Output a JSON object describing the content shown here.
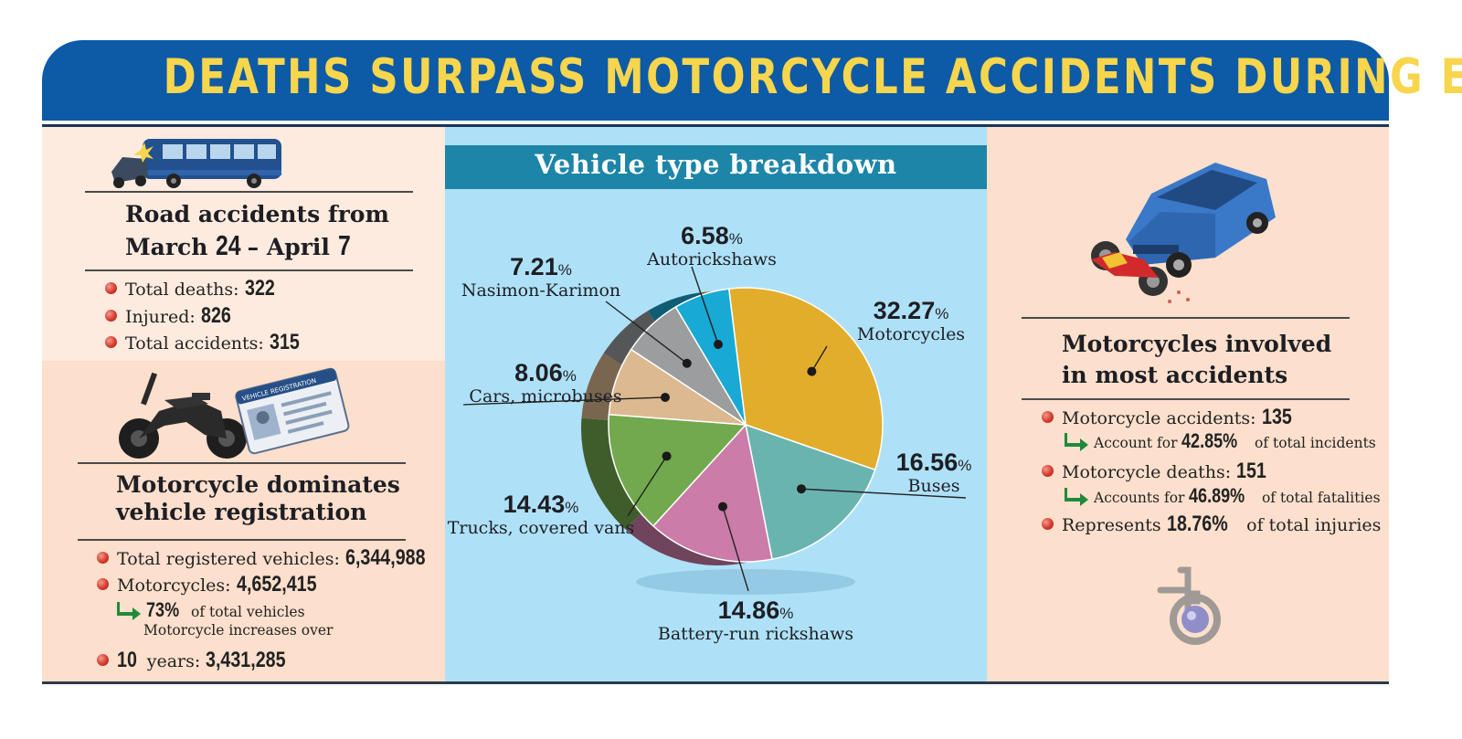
{
  "title": "DEATHS SURPASS MOTORCYCLE ACCIDENTS DURING EID",
  "left_top": {
    "heading_line1": "Road accidents from",
    "heading_march": "March",
    "heading_d1": "24",
    "heading_dash": "– April",
    "heading_d2": "7",
    "items": [
      {
        "label": "Total deaths:",
        "value": "322"
      },
      {
        "label": "Injured:",
        "value": "826"
      },
      {
        "label": "Total accidents:",
        "value": "315"
      }
    ]
  },
  "left_bottom": {
    "heading_line1": "Motorcycle dominates",
    "heading_line2": "vehicle registration",
    "items": [
      {
        "label": "Total registered vehicles:",
        "value": "6,344,988"
      },
      {
        "label": "Motorcycles:",
        "value": "4,652,415"
      }
    ],
    "share_value": "73%",
    "share_text": "of total vehicles",
    "increase_text": "Motorcycle increases over",
    "years_value": "10",
    "years_label": "years:",
    "years_count": "3,431,285",
    "card_title": "VEHICLE REGISTRATION"
  },
  "right": {
    "heading_line1": "Motorcycles involved",
    "heading_line2": "in most accidents",
    "items": [
      {
        "label": "Motorcycle accidents:",
        "value": "135",
        "sub_prefix": "Account for",
        "sub_value": "42.85%",
        "sub_suffix": "of total incidents"
      },
      {
        "label": "Motorcycle deaths:",
        "value": "151",
        "sub_prefix": "Accounts for",
        "sub_value": "46.89%",
        "sub_suffix": "of total fatalities"
      }
    ],
    "injuries_prefix": "Represents",
    "injuries_value": "18.76%",
    "injuries_suffix": "of total injuries"
  },
  "chart_data": {
    "type": "pie",
    "title": "Vehicle type breakdown",
    "unit": "%",
    "slices": [
      {
        "label": "Motorcycles",
        "value": 32.27,
        "color": "#e2ad2b"
      },
      {
        "label": "Buses",
        "value": 16.56,
        "color": "#6ab4b0"
      },
      {
        "label": "Battery-run rickshaws",
        "value": 14.86,
        "color": "#cb7ca8"
      },
      {
        "label": "Trucks, covered vans",
        "value": 14.43,
        "color": "#73a94e"
      },
      {
        "label": "Cars, microbuses",
        "value": 8.06,
        "color": "#dcb990"
      },
      {
        "label": "Nasimon-Karimon",
        "value": 7.21,
        "color": "#9b9d9f"
      },
      {
        "label": "Autorickshaws",
        "value": 6.58,
        "color": "#19a9d5"
      }
    ]
  },
  "colors": {
    "banner": "#0d5aa6",
    "title_text": "#f7d64d",
    "chart_header": "#1d85a8",
    "chart_bg": "#aee1f7",
    "bullet": "#d63b2e",
    "arrow": "#1f8a3a"
  }
}
